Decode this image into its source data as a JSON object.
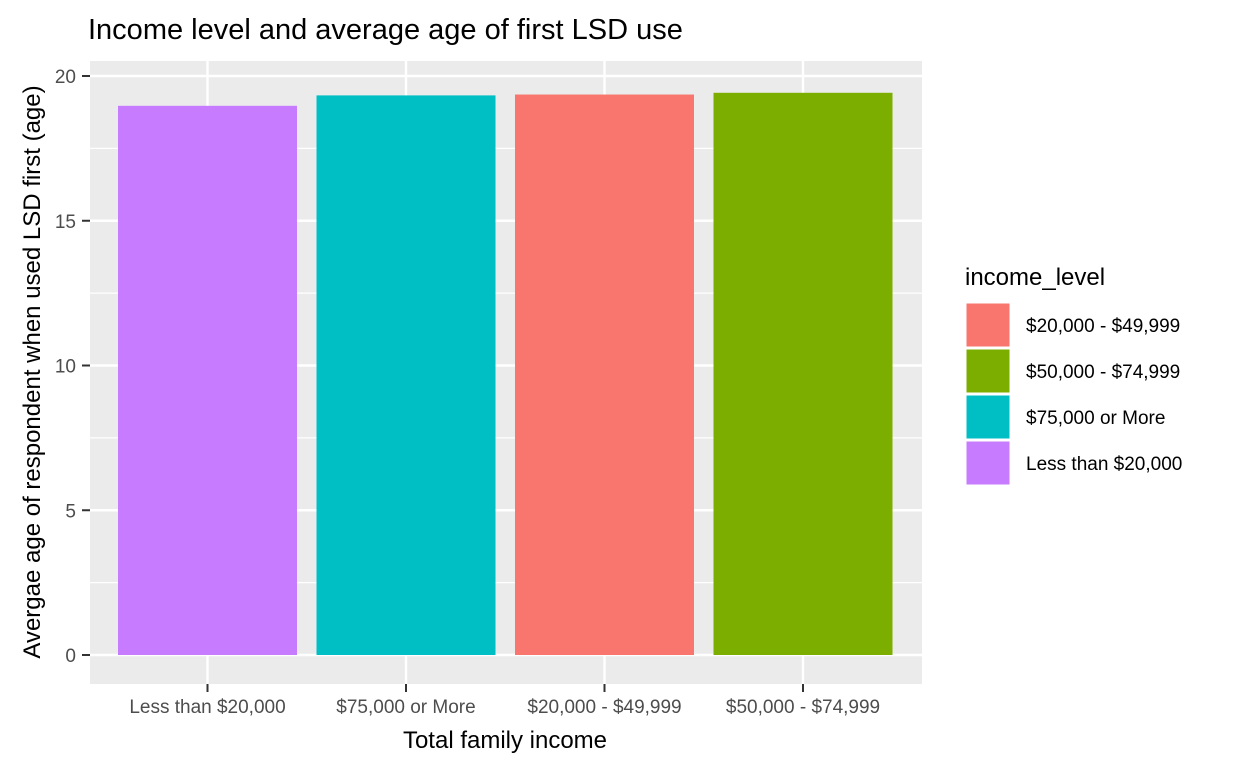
{
  "chart_data": {
    "type": "bar",
    "title": "Income level and average age of first LSD use",
    "xlabel": "Total family income",
    "ylabel": "Avergae age of respondent when used LSD first (age)",
    "categories": [
      "Less than $20,000",
      "$75,000 or More",
      "$20,000 - $49,999",
      "$50,000 - $74,999"
    ],
    "values": [
      18.97,
      19.33,
      19.36,
      19.42
    ],
    "ylim": [
      0,
      20
    ],
    "yticks": [
      0,
      5,
      10,
      15,
      20
    ],
    "grid": true,
    "legend": {
      "title": "income_level",
      "placement": "right",
      "entries": [
        {
          "label": "$20,000 - $49,999",
          "color": "#F8766D"
        },
        {
          "label": "$50,000 - $74,999",
          "color": "#7CAE00"
        },
        {
          "label": "$75,000 or More",
          "color": "#00BFC4"
        },
        {
          "label": "Less than $20,000",
          "color": "#C77CFF"
        }
      ]
    },
    "bar_colors": [
      "#C77CFF",
      "#00BFC4",
      "#F8766D",
      "#7CAE00"
    ],
    "panel_background": "#EBEBEB",
    "gridline_color": "#FFFFFF"
  }
}
